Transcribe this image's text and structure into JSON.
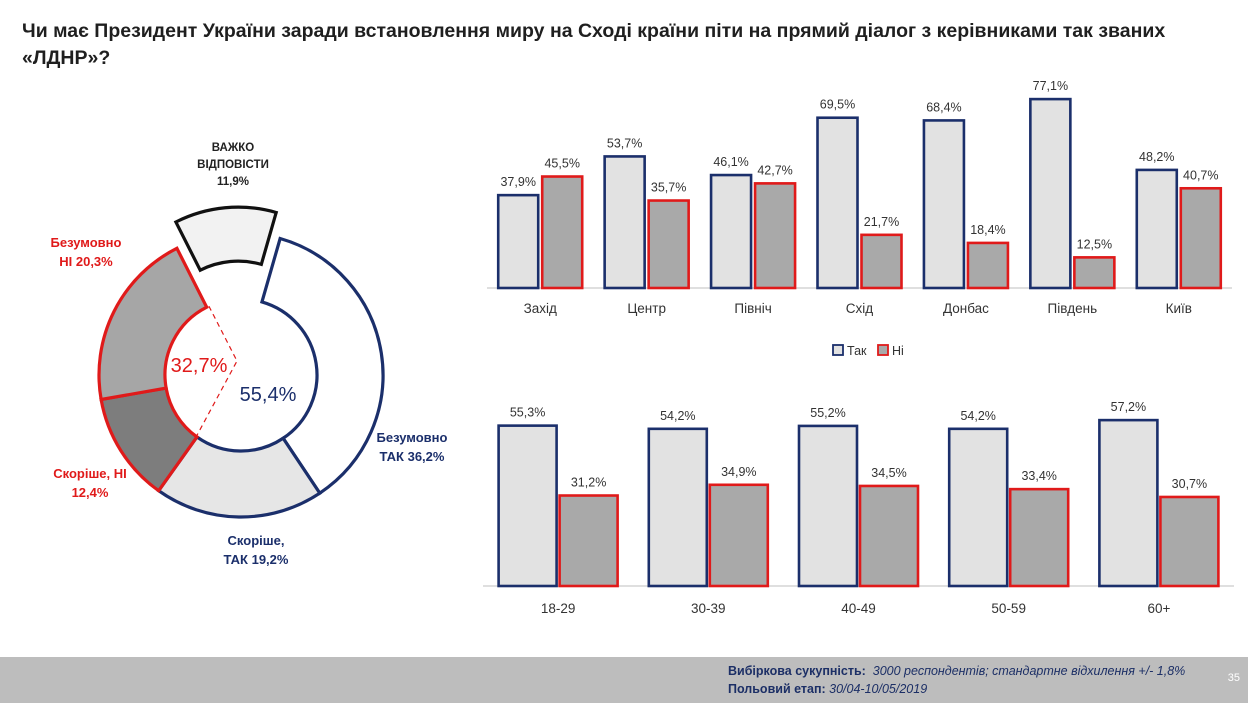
{
  "title": "Чи має Президент України заради встановлення миру на Сході країни піти на прямий діалог з керівниками так званих «ЛДНР»?",
  "colors": {
    "yes": "#1b2f6b",
    "no": "#e01a1a",
    "yes_fill": "#e2e2e2",
    "no_fill": "#a9a9a9"
  },
  "chart_data": [
    {
      "type": "pie",
      "variant": "donut",
      "slices": [
        {
          "name_lines": [
            "Безумовно",
            "ТАК 36,2%"
          ],
          "value": 36.2,
          "group": "yes",
          "fill": "#ffffff"
        },
        {
          "name_lines": [
            "Скоріше,",
            "ТАК 19,2%"
          ],
          "value": 19.2,
          "group": "yes",
          "fill": "#e6e6e6"
        },
        {
          "name_lines": [
            "Скоріше, НІ",
            "12,4%"
          ],
          "value": 12.4,
          "group": "no",
          "fill": "#7d7d7d"
        },
        {
          "name_lines": [
            "Безумовно",
            "НІ 20,3%"
          ],
          "value": 20.3,
          "group": "no",
          "fill": "#a6a6a6"
        },
        {
          "name_lines": [
            "ВАЖКО",
            "ВІДПОВІСТИ",
            "11,9%"
          ],
          "value": 11.9,
          "group": "dk",
          "fill": "#f2f2f2",
          "exploded": true
        }
      ],
      "center_labels": {
        "yes": "55,4%",
        "no": "32,7%"
      }
    },
    {
      "type": "bar",
      "categories": [
        "Захід",
        "Центр",
        "Північ",
        "Схід",
        "Донбас",
        "Південь",
        "Київ"
      ],
      "series": [
        {
          "name": "Так",
          "values": [
            37.9,
            53.7,
            46.1,
            69.5,
            68.4,
            77.1,
            48.2
          ],
          "labels": [
            "37,9%",
            "53,7%",
            "46,1%",
            "69,5%",
            "68,4%",
            "77,1%",
            "48,2%"
          ]
        },
        {
          "name": "Ні",
          "values": [
            45.5,
            35.7,
            42.7,
            21.7,
            18.4,
            12.5,
            40.7
          ],
          "labels": [
            "45,5%",
            "35,7%",
            "42,7%",
            "21,7%",
            "18,4%",
            "12,5%",
            "40,7%"
          ]
        }
      ],
      "ylim": [
        0,
        80
      ],
      "legend": "bottom"
    },
    {
      "type": "bar",
      "categories": [
        "18-29",
        "30-39",
        "40-49",
        "50-59",
        "60+"
      ],
      "series": [
        {
          "name": "Так",
          "values": [
            55.3,
            54.2,
            55.2,
            54.2,
            57.2
          ],
          "labels": [
            "55,3%",
            "54,2%",
            "55,2%",
            "54,2%",
            "57,2%"
          ]
        },
        {
          "name": "Ні",
          "values": [
            31.2,
            34.9,
            34.5,
            33.4,
            30.7
          ],
          "labels": [
            "31,2%",
            "34,9%",
            "34,5%",
            "33,4%",
            "30,7%"
          ]
        }
      ],
      "ylim": [
        0,
        60
      ]
    }
  ],
  "footer": {
    "sample_label": "Вибіркова сукупність:",
    "sample_value": "3000  респондентів; стандартне  відхилення +/- 1,8%",
    "field_label": "Польовий етап:",
    "field_value": "30/04-10/05/2019",
    "page": "35"
  }
}
